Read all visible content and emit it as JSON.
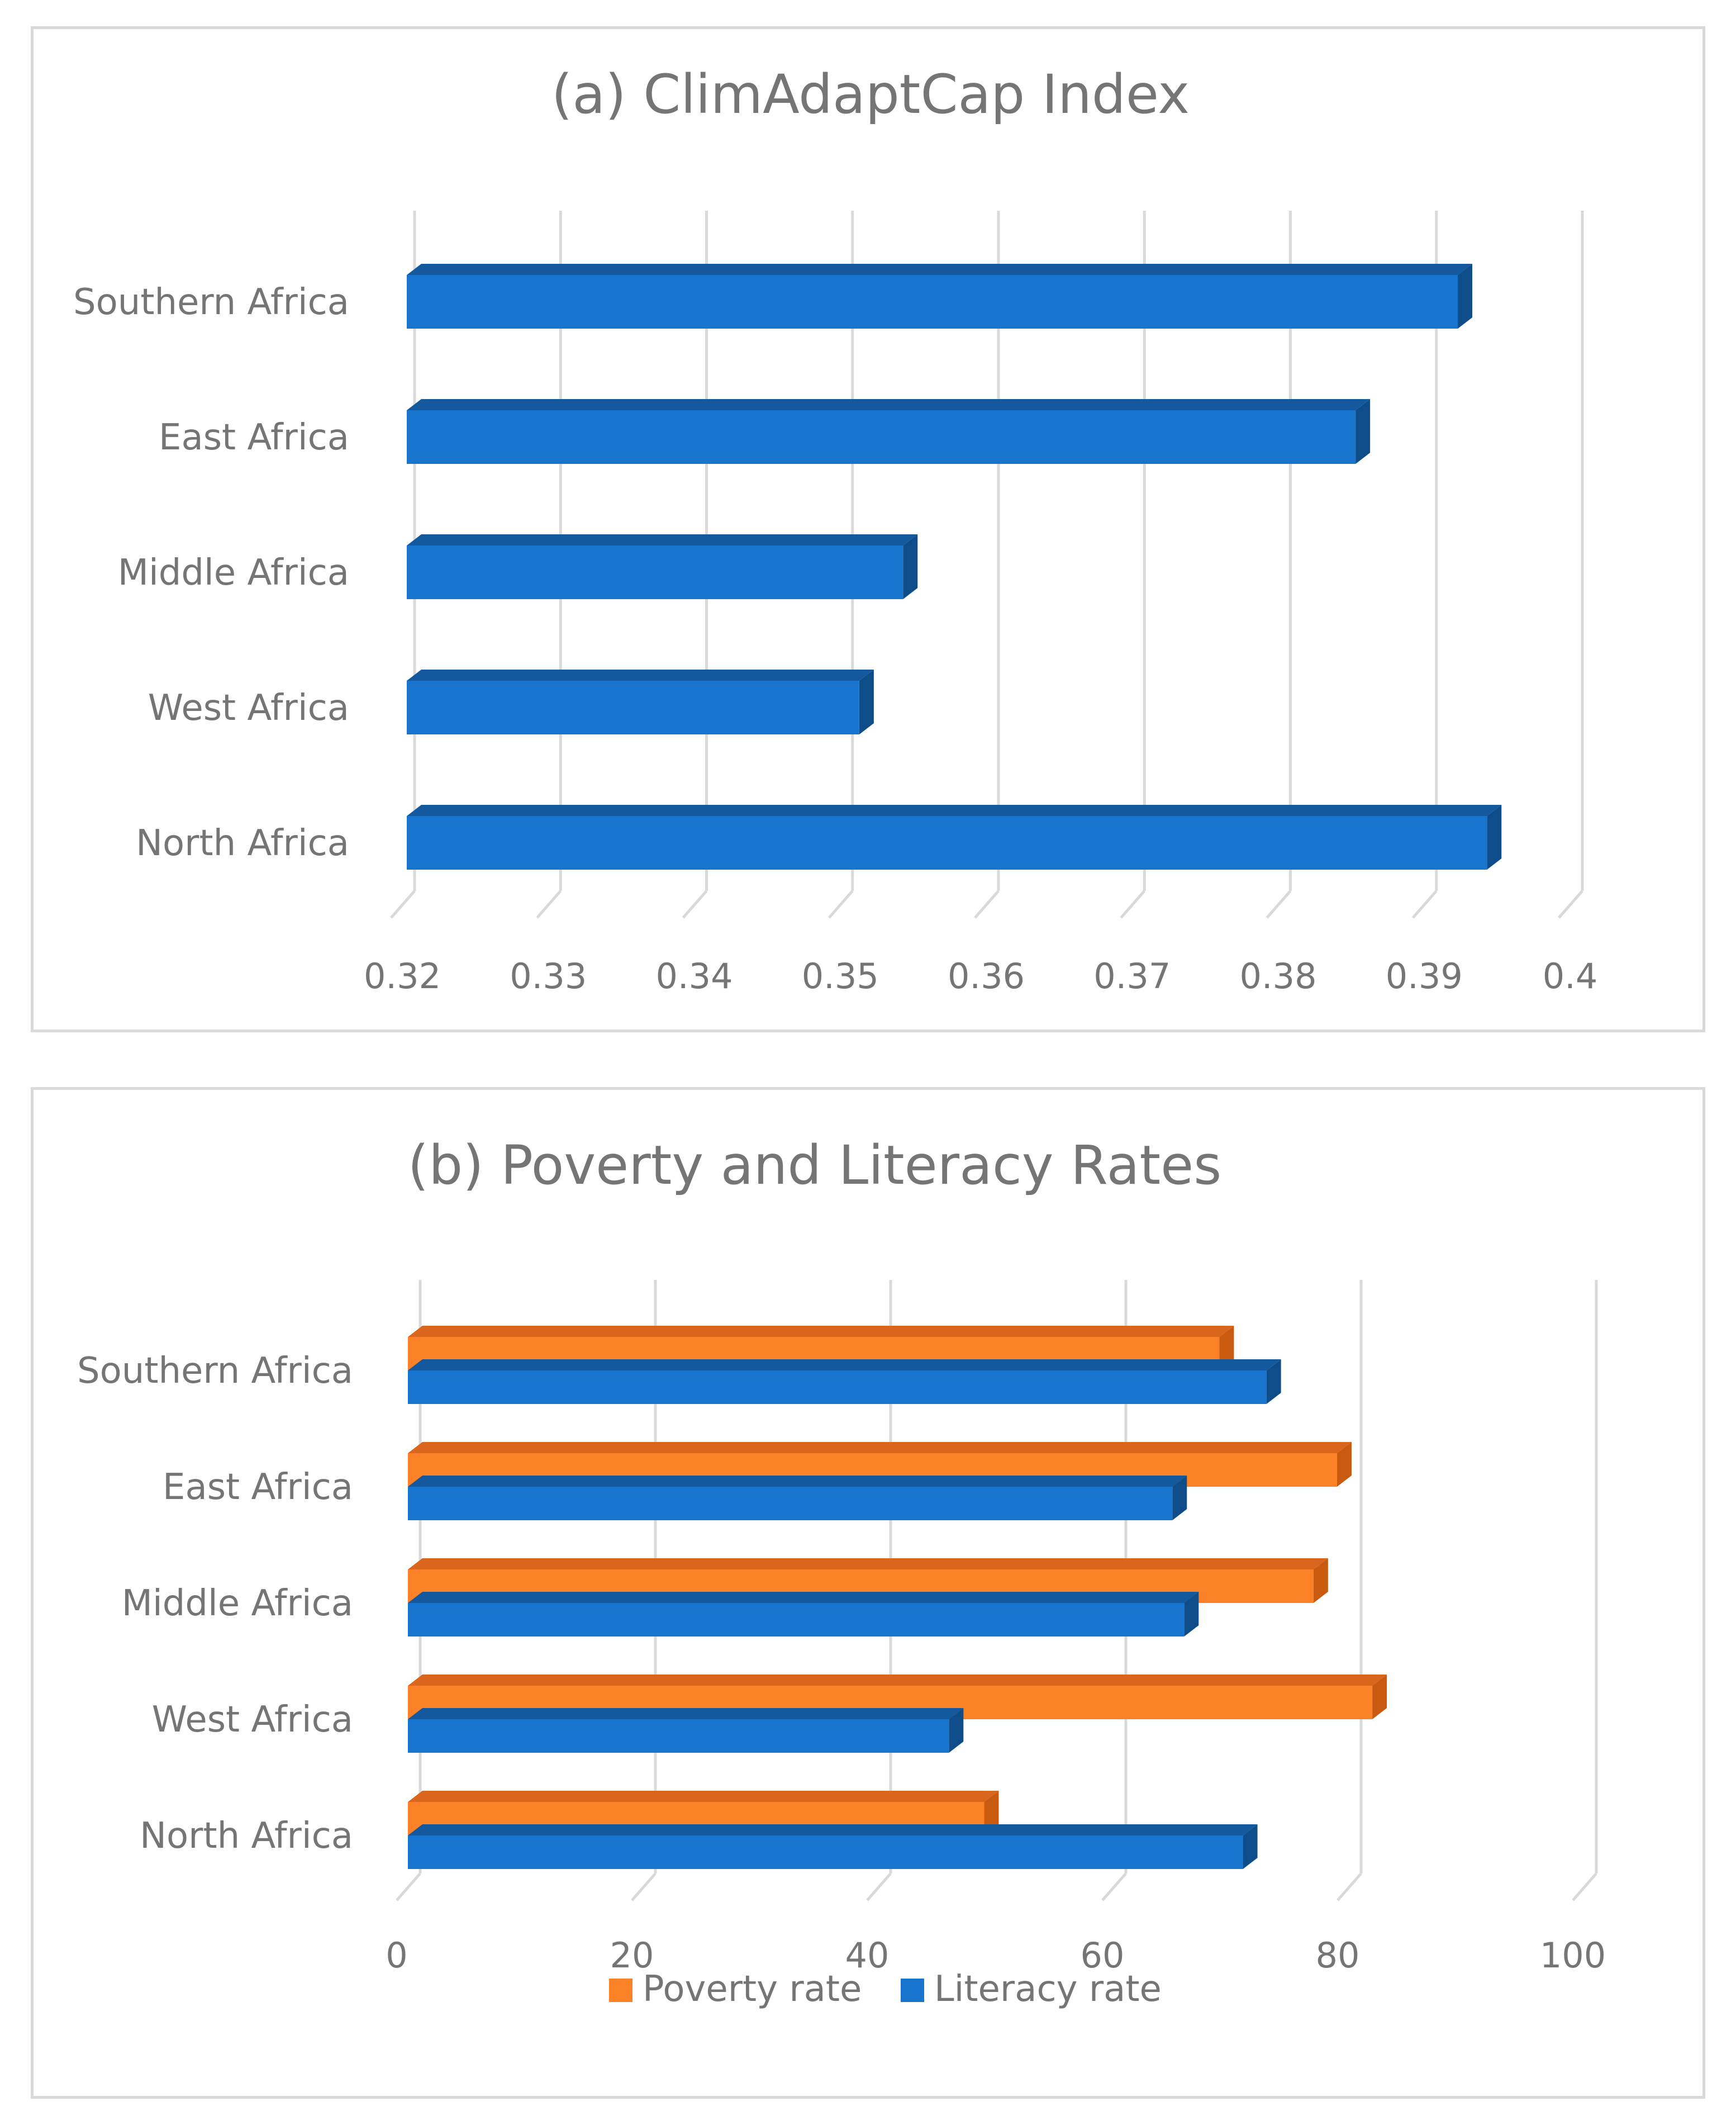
{
  "colors": {
    "blue": "#1874cd",
    "blue_side": "#0e4c8a",
    "blue_top": "#14589e",
    "orange": "#fb8126",
    "orange_side": "#c95a10",
    "orange_top": "#d9661c",
    "grid": "#d9d9d9",
    "text": "#757575"
  },
  "chart_data": [
    {
      "type": "bar",
      "orientation": "horizontal",
      "title": "(a) ClimAdaptCap Index",
      "categories": [
        "Southern Africa",
        "East Africa",
        "Middle Africa",
        "West Africa",
        "North Africa"
      ],
      "values": [
        0.392,
        0.385,
        0.354,
        0.351,
        0.394
      ],
      "xlim": [
        0.32,
        0.4
      ],
      "xticks": [
        "0.32",
        "0.33",
        "0.34",
        "0.35",
        "0.36",
        "0.37",
        "0.38",
        "0.39",
        "0.4"
      ],
      "grid": true,
      "legend": false
    },
    {
      "type": "bar",
      "orientation": "horizontal",
      "title": "(b) Poverty and Literacy Rates",
      "categories": [
        "Southern Africa",
        "East Africa",
        "Middle Africa",
        "West Africa",
        "North Africa"
      ],
      "series": [
        {
          "name": "Poverty rate",
          "color": "orange",
          "values": [
            69,
            79,
            77,
            82,
            49
          ]
        },
        {
          "name": "Literacy rate",
          "color": "blue",
          "values": [
            73,
            65,
            66,
            46,
            71
          ]
        }
      ],
      "xlim": [
        0,
        100
      ],
      "xticks": [
        "0",
        "20",
        "40",
        "60",
        "80",
        "100"
      ],
      "grid": true,
      "legend": "bottom"
    }
  ]
}
